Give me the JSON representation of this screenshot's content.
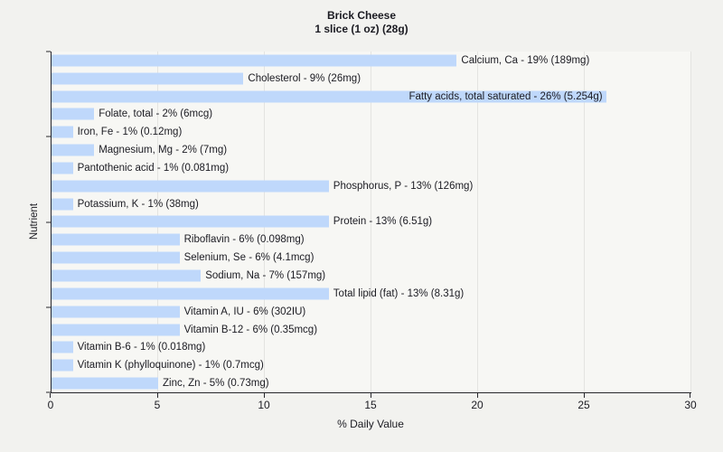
{
  "title": "Brick Cheese",
  "subtitle": "1 slice (1 oz) (28g)",
  "colors": {
    "page_bg": "#f2f2ef",
    "plot_bg": "#f7f7f4",
    "gridline": "#e4e4e1",
    "bar_fill": "#bfd8fb",
    "axis": "#26262b",
    "text": "#1b1b22"
  },
  "chart_data": {
    "type": "bar",
    "orientation": "horizontal",
    "title": "Brick Cheese",
    "subtitle": "1 slice (1 oz) (28g)",
    "xlabel": "% Daily Value",
    "ylabel": "Nutrient",
    "xlim": [
      0,
      30
    ],
    "xticks": [
      0,
      5,
      10,
      15,
      20,
      25,
      30
    ],
    "grid": "vertical",
    "legend": "none",
    "label_format": "{name} - {pct}% ({amount})",
    "items": [
      {
        "name": "Calcium, Ca",
        "pct": 19,
        "amount": "189mg"
      },
      {
        "name": "Cholesterol",
        "pct": 9,
        "amount": "26mg"
      },
      {
        "name": "Fatty acids, total saturated",
        "pct": 26,
        "amount": "5.254g"
      },
      {
        "name": "Folate, total",
        "pct": 2,
        "amount": "6mcg"
      },
      {
        "name": "Iron, Fe",
        "pct": 1,
        "amount": "0.12mg"
      },
      {
        "name": "Magnesium, Mg",
        "pct": 2,
        "amount": "7mg"
      },
      {
        "name": "Pantothenic acid",
        "pct": 1,
        "amount": "0.081mg"
      },
      {
        "name": "Phosphorus, P",
        "pct": 13,
        "amount": "126mg"
      },
      {
        "name": "Potassium, K",
        "pct": 1,
        "amount": "38mg"
      },
      {
        "name": "Protein",
        "pct": 13,
        "amount": "6.51g"
      },
      {
        "name": "Riboflavin",
        "pct": 6,
        "amount": "0.098mg"
      },
      {
        "name": "Selenium, Se",
        "pct": 6,
        "amount": "4.1mcg"
      },
      {
        "name": "Sodium, Na",
        "pct": 7,
        "amount": "157mg"
      },
      {
        "name": "Total lipid (fat)",
        "pct": 13,
        "amount": "8.31g"
      },
      {
        "name": "Vitamin A, IU",
        "pct": 6,
        "amount": "302IU"
      },
      {
        "name": "Vitamin B-12",
        "pct": 6,
        "amount": "0.35mcg"
      },
      {
        "name": "Vitamin B-6",
        "pct": 1,
        "amount": "0.018mg"
      },
      {
        "name": "Vitamin K (phylloquinone)",
        "pct": 1,
        "amount": "0.7mcg"
      },
      {
        "name": "Zinc, Zn",
        "pct": 5,
        "amount": "0.73mg"
      }
    ]
  }
}
